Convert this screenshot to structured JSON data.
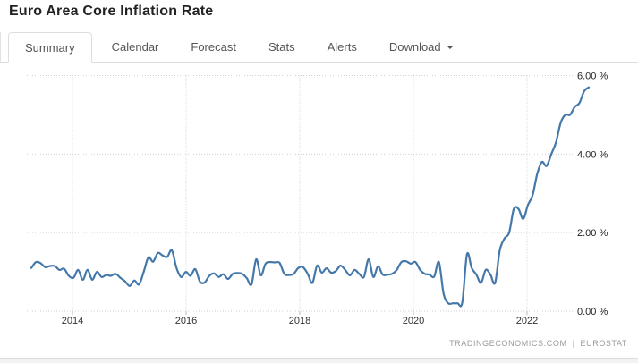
{
  "header": {
    "title": "Euro Area Core Inflation Rate"
  },
  "tabs": [
    {
      "label": "Summary",
      "active": true
    },
    {
      "label": "Calendar",
      "active": false
    },
    {
      "label": "Forecast",
      "active": false
    },
    {
      "label": "Stats",
      "active": false
    },
    {
      "label": "Alerts",
      "active": false
    },
    {
      "label": "Download",
      "active": false,
      "icon": "caret-down-icon"
    }
  ],
  "chart_data": {
    "type": "line",
    "title": "Euro Area Core Inflation Rate",
    "unit": "%",
    "x_start": "2013-04",
    "x_end": "2023-03",
    "x_frequency": "monthly",
    "x_tick_years": [
      2014,
      2016,
      2018,
      2020,
      2022
    ],
    "x_tick_labels": [
      "2014",
      "2016",
      "2018",
      "2020",
      "2022"
    ],
    "y_ticks": [
      6,
      4,
      2,
      0
    ],
    "y_tick_labels": [
      "6.00 %",
      "4.00 %",
      "2.00 %",
      "0.00 %"
    ],
    "ylim": [
      0,
      6
    ],
    "grid": "dotted",
    "line_color": "#4478ab",
    "last_value": 5.7,
    "series": [
      {
        "name": "Core Inflation Rate",
        "values": [
          1.1,
          1.25,
          1.22,
          1.12,
          1.15,
          1.15,
          1.05,
          1.08,
          0.9,
          0.85,
          1.05,
          0.8,
          1.05,
          0.8,
          1.0,
          0.87,
          0.92,
          0.9,
          0.95,
          0.85,
          0.76,
          0.64,
          0.78,
          0.68,
          1.0,
          1.37,
          1.26,
          1.48,
          1.42,
          1.38,
          1.55,
          1.1,
          0.87,
          1.0,
          0.9,
          1.07,
          0.75,
          0.73,
          0.9,
          0.96,
          0.87,
          0.94,
          0.82,
          0.95,
          0.97,
          0.95,
          0.84,
          0.68,
          1.32,
          0.91,
          1.21,
          1.25,
          1.24,
          1.23,
          0.95,
          0.92,
          0.95,
          1.1,
          1.12,
          0.95,
          0.72,
          1.16,
          0.98,
          1.09,
          0.98,
          1.02,
          1.16,
          1.05,
          0.91,
          1.05,
          0.95,
          0.87,
          1.32,
          0.87,
          1.14,
          0.93,
          0.93,
          0.95,
          1.05,
          1.25,
          1.27,
          1.21,
          1.25,
          1.05,
          0.95,
          0.93,
          0.88,
          1.25,
          0.45,
          0.2,
          0.2,
          0.2,
          0.22,
          1.45,
          1.1,
          0.93,
          0.72,
          1.05,
          0.93,
          0.72,
          1.55,
          1.85,
          2.0,
          2.6,
          2.6,
          2.35,
          2.7,
          2.95,
          3.5,
          3.8,
          3.7,
          4.0,
          4.3,
          4.8,
          5.0,
          5.0,
          5.2,
          5.3,
          5.6,
          5.7
        ]
      }
    ]
  },
  "footer": {
    "source_left": "TRADINGECONOMICS.COM",
    "separator": "|",
    "source_right": "EUROSTAT"
  }
}
